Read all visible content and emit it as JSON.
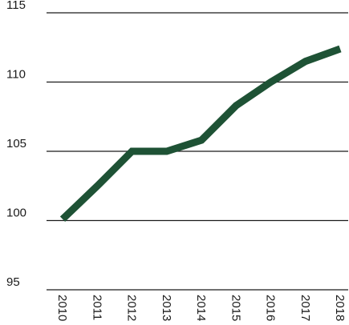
{
  "chart_data": {
    "type": "line",
    "title": "",
    "xlabel": "",
    "ylabel": "",
    "x": [
      "2010",
      "2011",
      "2012",
      "2013",
      "2014",
      "2015",
      "2016",
      "2017",
      "2018"
    ],
    "series": [
      {
        "values": [
          100.1,
          102.5,
          105.0,
          105.0,
          105.8,
          108.3,
          110.0,
          111.5,
          112.4
        ],
        "color": "#1e5235"
      }
    ],
    "ylim": [
      95,
      115
    ],
    "yticks": [
      95,
      100,
      105,
      110,
      115
    ],
    "grid": "horizontal",
    "legend": "none"
  }
}
